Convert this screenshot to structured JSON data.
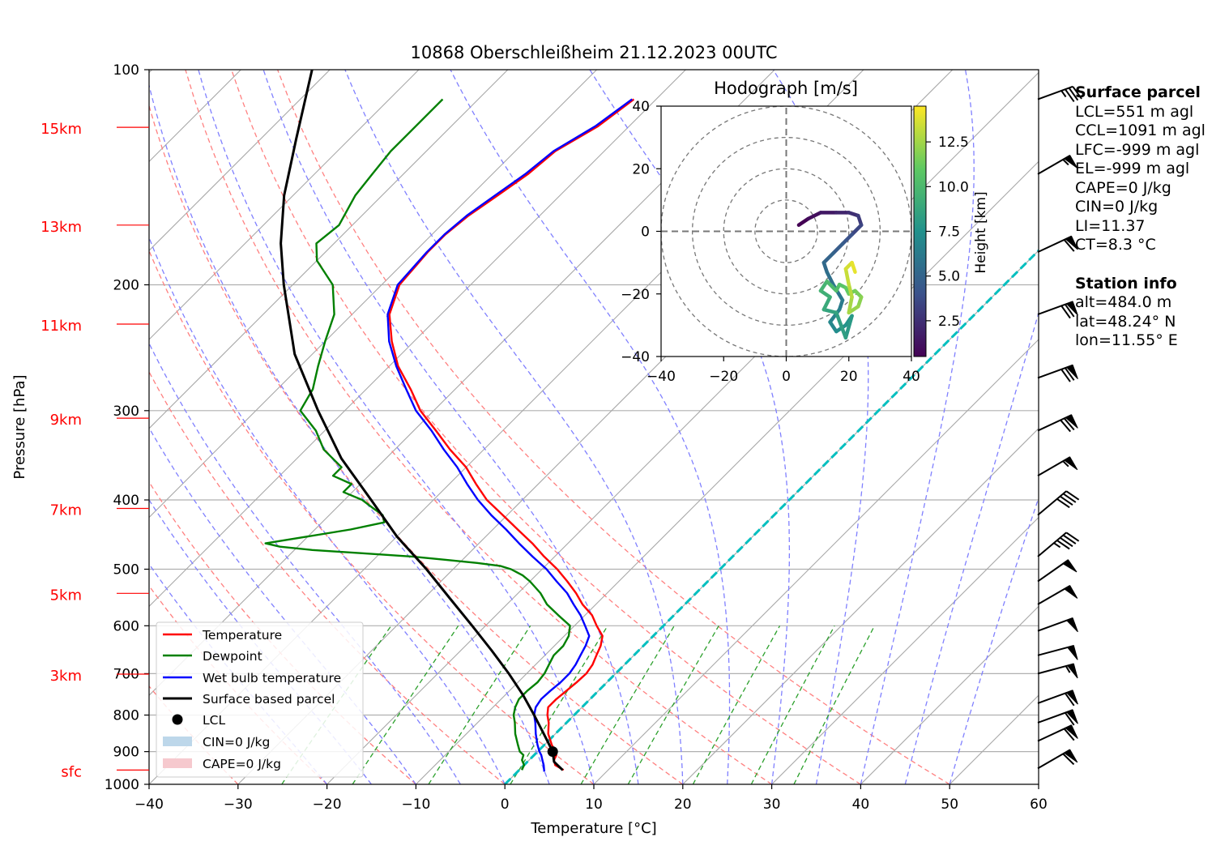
{
  "title": "10868 Oberschleißheim 21.12.2023 00UTC",
  "axes": {
    "xlabel": "Temperature [°C]",
    "ylabel": "Pressure [hPa]",
    "x_ticks": [
      "−40",
      "−30",
      "−20",
      "−10",
      "0",
      "10",
      "20",
      "30",
      "40",
      "50",
      "60"
    ],
    "y_ticks": [
      "100",
      "200",
      "300",
      "400",
      "500",
      "600",
      "700",
      "800",
      "900",
      "1000"
    ],
    "height_labels": [
      "15km",
      "13km",
      "11km",
      "9km",
      "7km",
      "5km",
      "3km",
      "sfc"
    ]
  },
  "legend": {
    "temperature": "Temperature",
    "dewpoint": "Dewpoint",
    "wetbulb": "Wet bulb temperature",
    "parcel": "Surface based parcel",
    "lcl": "LCL",
    "cin": "CIN=0 J/kg",
    "cape": "CAPE=0 J/kg"
  },
  "hodograph": {
    "title": "Hodograph [m/s]",
    "ticks": [
      "−40",
      "−20",
      "0",
      "20",
      "40"
    ],
    "colorbar_label": "Height [km]",
    "colorbar_ticks": [
      "2.5",
      "5.0",
      "7.5",
      "10.0",
      "12.5"
    ]
  },
  "surface_parcel": {
    "heading": "Surface parcel",
    "lcl": "LCL=551 m agl",
    "ccl": "CCL=1091 m agl",
    "lfc": "LFC=-999 m agl",
    "el": "EL=-999 m agl",
    "cape": "CAPE=0 J/kg",
    "cin": "CIN=0 J/kg",
    "li": "LI=11.37",
    "ct": "CT=8.3 °C"
  },
  "station_info": {
    "heading": "Station info",
    "alt": "alt=484.0 m",
    "lat": "lat=48.24° N",
    "lon": "lon=11.55° E"
  },
  "colors": {
    "temperature": "#ff0000",
    "dewpoint": "#008000",
    "wetbulb": "#0000ff",
    "parcel": "#000000",
    "isotherm_0": "#00bfbf",
    "dry_adiabat": "#ff8080",
    "moist_adiabat": "#8080ff",
    "mixing_ratio": "#2ca02c",
    "height_labels": "#ff0000"
  },
  "chart_data": [
    {
      "type": "line",
      "title": "10868 Oberschleißheim 21.12.2023 00UTC",
      "xlabel": "Temperature [°C]",
      "ylabel": "Pressure [hPa]",
      "xlim": [
        -40,
        60
      ],
      "ylim": [
        1000,
        100
      ],
      "y_scale": "log",
      "skew_deg_per_hPa_decade": 45,
      "grid": true,
      "legend_position": "bottom-left",
      "series": [
        {
          "name": "Temperature",
          "pressure": [
            955,
            940,
            925,
            910,
            900,
            880,
            850,
            820,
            800,
            780,
            760,
            740,
            720,
            700,
            680,
            660,
            640,
            620,
            600,
            580,
            560,
            540,
            520,
            500,
            480,
            460,
            440,
            420,
            400,
            380,
            360,
            340,
            320,
            300,
            280,
            260,
            240,
            220,
            200,
            180,
            170,
            160,
            150,
            140,
            130,
            120,
            110
          ],
          "values": [
            5.0,
            3.5,
            2.8,
            2.5,
            2.0,
            0.8,
            -0.8,
            -2.0,
            -3.0,
            -3.8,
            -3.8,
            -3.6,
            -3.4,
            -3.3,
            -3.6,
            -4.2,
            -4.8,
            -5.7,
            -7.5,
            -9.2,
            -11.5,
            -13.5,
            -15.8,
            -18.3,
            -21.2,
            -24.0,
            -27.2,
            -30.5,
            -34.0,
            -37.0,
            -40.0,
            -43.8,
            -47.5,
            -51.5,
            -55.0,
            -59.0,
            -62.5,
            -65.8,
            -68.0,
            -68.5,
            -68.5,
            -68.0,
            -67.0,
            -66.0,
            -65.5,
            -63.5,
            -62.5
          ]
        },
        {
          "name": "Dewpoint",
          "pressure": [
            955,
            940,
            925,
            910,
            900,
            880,
            850,
            820,
            800,
            780,
            760,
            740,
            720,
            700,
            680,
            660,
            640,
            620,
            600,
            580,
            560,
            540,
            520,
            510,
            500,
            495,
            490,
            485,
            480,
            475,
            470,
            465,
            460,
            450,
            440,
            430,
            420,
            410,
            400,
            390,
            380,
            370,
            360,
            340,
            320,
            300,
            280,
            260,
            240,
            220,
            200,
            185,
            175,
            165,
            150,
            140,
            130,
            110
          ],
          "values": [
            0.3,
            0.0,
            -0.8,
            -1.2,
            -2.0,
            -3.0,
            -4.5,
            -5.8,
            -6.8,
            -7.5,
            -8.0,
            -8.0,
            -7.8,
            -8.0,
            -8.5,
            -9.0,
            -9.0,
            -9.5,
            -10.5,
            -13.0,
            -15.5,
            -17.5,
            -20.0,
            -21.5,
            -23.5,
            -25.0,
            -28.0,
            -32.0,
            -36.0,
            -42.0,
            -48.0,
            -52.0,
            -54.0,
            -50.0,
            -46.0,
            -43.0,
            -44.0,
            -46.0,
            -48.0,
            -51.0,
            -51.0,
            -54.0,
            -54.0,
            -58.0,
            -61.0,
            -65.0,
            -66.0,
            -68.0,
            -70.0,
            -72.0,
            -75.5,
            -80.0,
            -82.0,
            -81.5,
            -83.0,
            -83.5,
            -84.0,
            -84.0
          ]
        },
        {
          "name": "Wet bulb temperature",
          "pressure": [
            960,
            940,
            925,
            910,
            900,
            880,
            850,
            820,
            800,
            780,
            760,
            740,
            720,
            700,
            680,
            660,
            640,
            620,
            600,
            580,
            560,
            540,
            520,
            500,
            480,
            460,
            440,
            420,
            400,
            380,
            360,
            340,
            320,
            300,
            280,
            260,
            240,
            220,
            200,
            180,
            170,
            160,
            150,
            140,
            130,
            120,
            110
          ],
          "values": [
            3.0,
            2.2,
            1.5,
            0.8,
            0.2,
            -0.8,
            -2.2,
            -3.5,
            -4.5,
            -5.2,
            -5.5,
            -5.4,
            -5.2,
            -5.2,
            -5.5,
            -6.0,
            -6.5,
            -7.2,
            -8.8,
            -10.5,
            -12.5,
            -14.5,
            -17.0,
            -19.5,
            -22.5,
            -25.5,
            -28.5,
            -31.8,
            -35.0,
            -38.0,
            -41.0,
            -44.5,
            -48.0,
            -52.0,
            -55.5,
            -59.2,
            -62.8,
            -66.0,
            -68.2,
            -68.6,
            -68.6,
            -68.2,
            -67.3,
            -66.3,
            -65.7,
            -63.8,
            -62.7
          ]
        },
        {
          "name": "Surface based parcel",
          "pressure": [
            955,
            930,
            900,
            850,
            800,
            750,
            700,
            650,
            600,
            550,
            500,
            450,
            400,
            350,
            300,
            250,
            200,
            175,
            150,
            125,
            100
          ],
          "values": [
            4.9,
            3.0,
            1.7,
            -1.3,
            -4.5,
            -8.0,
            -12.0,
            -16.5,
            -21.5,
            -27.0,
            -33.0,
            -40.0,
            -47.0,
            -55.0,
            -63.0,
            -72.0,
            -81.0,
            -86.0,
            -91.0,
            -96.0,
            -102.0
          ]
        }
      ],
      "lcl": {
        "pressure": 900,
        "temperature": 1.7
      }
    },
    {
      "type": "line",
      "title": "Hodograph [m/s]",
      "xlim": [
        -40,
        40
      ],
      "ylim": [
        -40,
        40
      ],
      "colorbar": {
        "label": "Height [km]",
        "range": [
          0.5,
          14.5
        ]
      },
      "u": [
        4,
        7,
        11,
        16,
        20,
        23,
        24,
        21,
        19,
        18,
        15,
        12,
        13,
        15,
        18,
        17,
        14,
        16,
        19,
        21,
        19,
        16,
        12,
        14,
        11,
        13,
        16,
        17,
        19,
        20,
        22,
        24,
        23,
        20,
        21,
        20,
        19,
        21,
        22
      ],
      "v": [
        2,
        4,
        6,
        6,
        6,
        5,
        2,
        -1,
        -3,
        -4,
        -7,
        -10,
        -13,
        -17,
        -22,
        -25,
        -29,
        -32,
        -30,
        -27,
        -34,
        -26,
        -25,
        -21,
        -19,
        -16,
        -19,
        -17,
        -18,
        -20,
        -19,
        -21,
        -24,
        -26,
        -21,
        -17,
        -12,
        -10,
        -13
      ],
      "height_km": [
        0.5,
        1.0,
        1.5,
        2.0,
        2.5,
        3.0,
        3.5,
        4.0,
        4.3,
        4.6,
        5.0,
        5.3,
        5.6,
        6.0,
        6.3,
        6.6,
        7.0,
        7.3,
        7.6,
        8.0,
        8.3,
        8.6,
        9.0,
        9.3,
        9.6,
        10.0,
        10.3,
        10.6,
        11.0,
        11.3,
        11.6,
        12.0,
        12.3,
        12.6,
        13.0,
        13.3,
        13.6,
        14.0,
        14.5
      ]
    }
  ],
  "wind_barbs": {
    "pressure": [
      950,
      870,
      820,
      770,
      700,
      660,
      610,
      560,
      520,
      480,
      420,
      370,
      320,
      270,
      220,
      180,
      140,
      110
    ],
    "speed_kt": [
      60,
      60,
      60,
      60,
      55,
      50,
      50,
      50,
      50,
      45,
      40,
      55,
      70,
      70,
      70,
      60,
      55,
      35
    ],
    "direction_deg": [
      240,
      245,
      250,
      250,
      255,
      255,
      250,
      240,
      235,
      230,
      230,
      240,
      245,
      250,
      250,
      245,
      240,
      250
    ]
  }
}
